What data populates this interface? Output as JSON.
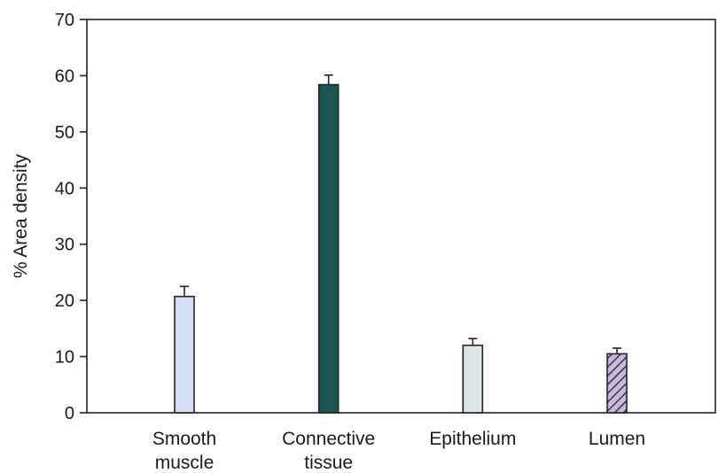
{
  "chart_data": {
    "type": "bar",
    "title": "",
    "xlabel": "",
    "ylabel": "% Area density",
    "ylim": [
      0,
      70
    ],
    "yticks": [
      0,
      10,
      20,
      30,
      40,
      50,
      60,
      70
    ],
    "grid": false,
    "categories": [
      {
        "lines": [
          "Smooth",
          "muscle"
        ]
      },
      {
        "lines": [
          "Connective",
          "tissue"
        ]
      },
      {
        "lines": [
          "Epithelium"
        ]
      },
      {
        "lines": [
          "Lumen"
        ]
      }
    ],
    "values": [
      20.7,
      58.4,
      12.0,
      10.5
    ],
    "errors": [
      1.8,
      1.7,
      1.2,
      1.0
    ],
    "colors": [
      "#d3def0",
      "#1d5754",
      "#dde4e6",
      "#c9b8d8"
    ],
    "patterns": [
      "solid",
      "solid",
      "solid",
      "diagonal-hatch"
    ]
  }
}
